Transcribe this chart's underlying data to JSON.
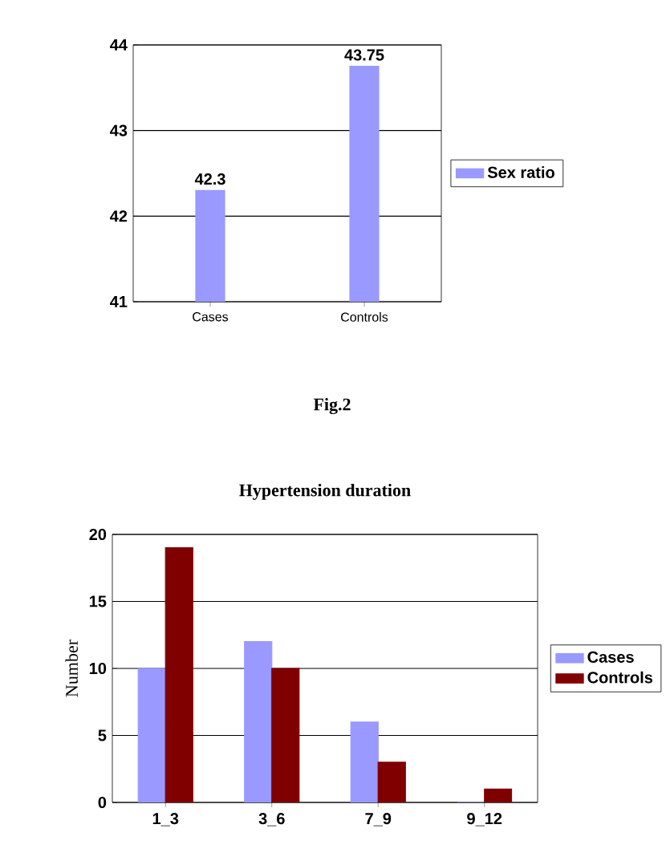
{
  "chart_data": [
    {
      "type": "bar",
      "categories": [
        "Cases",
        "Controls"
      ],
      "series": [
        {
          "name": "Sex ratio",
          "color": "#9999ff",
          "values": [
            42.3,
            43.75
          ]
        }
      ],
      "ylim": [
        41,
        44
      ],
      "yticks": [
        41,
        42,
        43,
        44
      ],
      "grid": "y",
      "legend": "right",
      "data_labels": true,
      "annotations": [
        "Fig.2"
      ]
    },
    {
      "type": "bar",
      "title": "Hypertension duration",
      "ylabel": "Number",
      "categories": [
        "1_3",
        "3_6",
        "7_9",
        "9_12"
      ],
      "series": [
        {
          "name": "Cases",
          "color": "#9999ff",
          "values": [
            10,
            12,
            6,
            0
          ]
        },
        {
          "name": "Controls",
          "color": "#800000",
          "values": [
            19,
            10,
            3,
            1
          ]
        }
      ],
      "ylim": [
        0,
        20
      ],
      "yticks": [
        0,
        5,
        10,
        15,
        20
      ],
      "grid": "y",
      "legend": "right"
    }
  ]
}
